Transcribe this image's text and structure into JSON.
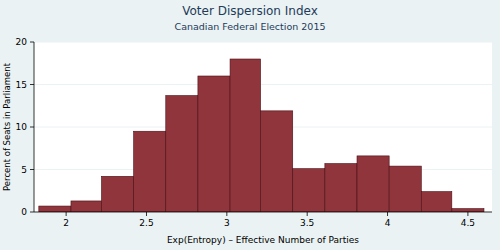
{
  "chart_data": {
    "type": "histogram",
    "title": "Voter Dispersion Index",
    "subtitle": "Canadian Federal Election 2015",
    "x_label": "Exp(Entropy) – Effective Number of Parties",
    "y_label": "Percent of Seats in Parliament",
    "bins": [
      1.83,
      2.03,
      2.22,
      2.42,
      2.62,
      2.82,
      3.02,
      3.21,
      3.41,
      3.61,
      3.81,
      4.01,
      4.21,
      4.4,
      4.6
    ],
    "values": [
      0.7,
      1.3,
      4.2,
      9.5,
      13.7,
      16,
      18,
      11.9,
      5.1,
      5.7,
      6.6,
      5.4,
      2.4,
      0.4
    ],
    "color": "#90353b",
    "xlim": [
      1.8,
      4.65
    ],
    "xticks": [
      2,
      2.5,
      3,
      3.5,
      4,
      4.5
    ],
    "ylim": [
      0,
      20
    ],
    "yticks": [
      0,
      5,
      10,
      15,
      20
    ],
    "grid": true
  }
}
